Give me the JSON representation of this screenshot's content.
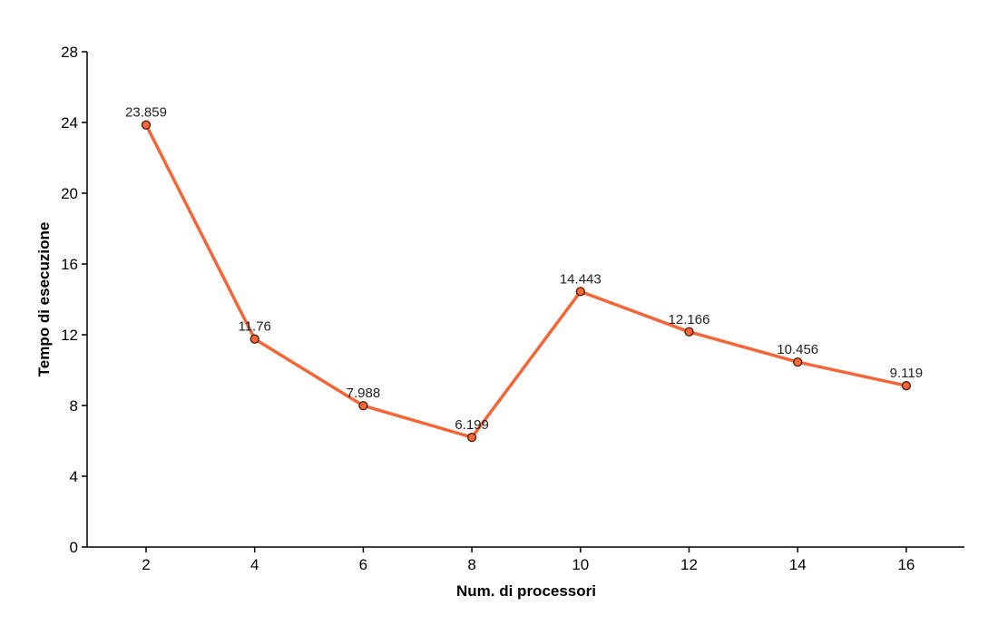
{
  "chart_data": {
    "type": "line",
    "title": "",
    "xlabel": "Num. di processori",
    "ylabel": "Tempo di esecuzione",
    "x": [
      2,
      4,
      6,
      8,
      10,
      12,
      14,
      16
    ],
    "x_tick_labels": [
      "2",
      "4",
      "6",
      "8",
      "10",
      "12",
      "14",
      "16"
    ],
    "series": [
      {
        "name": "Tempo di esecuzione",
        "values": [
          23.859,
          11.76,
          7.988,
          6.199,
          14.443,
          12.166,
          10.456,
          9.119
        ],
        "value_labels": [
          "23.859",
          "11.76",
          "7.988",
          "6.199",
          "14.443",
          "12.166",
          "10.456",
          "9.119"
        ],
        "color": "#f26638",
        "marker_fill": "#f26638",
        "marker_stroke": "#4a1a0a"
      }
    ],
    "y_ticks": [
      0,
      4,
      8,
      12,
      16,
      20,
      24,
      28
    ],
    "ylim": [
      0,
      28
    ],
    "grid": false,
    "legend": "none"
  }
}
